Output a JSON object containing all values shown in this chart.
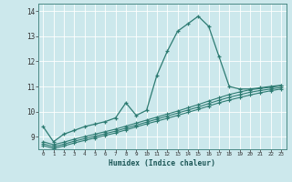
{
  "xlabel": "Humidex (Indice chaleur)",
  "background_color": "#cce8ec",
  "grid_color": "#b0d4d8",
  "line_color": "#2d7b72",
  "xlim": [
    -0.5,
    23.5
  ],
  "ylim": [
    8.5,
    14.3
  ],
  "xticks": [
    0,
    1,
    2,
    3,
    4,
    5,
    6,
    7,
    8,
    9,
    10,
    11,
    12,
    13,
    14,
    15,
    16,
    17,
    18,
    19,
    20,
    21,
    22,
    23
  ],
  "yticks": [
    9,
    10,
    11,
    12,
    13,
    14
  ],
  "curve1_x": [
    0,
    1,
    2,
    3,
    4,
    5,
    6,
    7,
    8,
    9,
    10,
    11,
    12,
    13,
    14,
    15,
    16,
    17,
    18,
    19,
    20,
    21,
    22,
    23
  ],
  "curve1_y": [
    9.4,
    8.8,
    9.1,
    9.25,
    9.4,
    9.5,
    9.6,
    9.75,
    10.35,
    9.85,
    10.05,
    11.45,
    12.4,
    13.2,
    13.5,
    13.8,
    13.4,
    12.2,
    11.0,
    10.9,
    10.9,
    10.95,
    11.0,
    11.05
  ],
  "curve2_x": [
    0,
    1,
    2,
    3,
    4,
    5,
    6,
    7,
    8,
    9,
    10,
    11,
    12,
    13,
    14,
    15,
    16,
    17,
    18,
    19,
    20,
    21,
    22,
    23
  ],
  "curve2_y": [
    8.8,
    8.68,
    8.78,
    8.9,
    9.0,
    9.1,
    9.2,
    9.3,
    9.42,
    9.54,
    9.66,
    9.78,
    9.9,
    10.02,
    10.15,
    10.28,
    10.42,
    10.55,
    10.68,
    10.78,
    10.87,
    10.92,
    10.97,
    11.02
  ],
  "curve3_x": [
    0,
    1,
    2,
    3,
    4,
    5,
    6,
    7,
    8,
    9,
    10,
    11,
    12,
    13,
    14,
    15,
    16,
    17,
    18,
    19,
    20,
    21,
    22,
    23
  ],
  "curve3_y": [
    8.72,
    8.6,
    8.7,
    8.82,
    8.92,
    9.02,
    9.12,
    9.22,
    9.34,
    9.46,
    9.58,
    9.7,
    9.82,
    9.94,
    10.06,
    10.18,
    10.32,
    10.45,
    10.57,
    10.67,
    10.77,
    10.84,
    10.9,
    10.96
  ],
  "curve4_x": [
    0,
    1,
    2,
    3,
    4,
    5,
    6,
    7,
    8,
    9,
    10,
    11,
    12,
    13,
    14,
    15,
    16,
    17,
    18,
    19,
    20,
    21,
    22,
    23
  ],
  "curve4_y": [
    8.65,
    8.53,
    8.63,
    8.75,
    8.85,
    8.95,
    9.05,
    9.15,
    9.27,
    9.39,
    9.51,
    9.62,
    9.73,
    9.85,
    9.97,
    10.09,
    10.22,
    10.35,
    10.46,
    10.56,
    10.66,
    10.75,
    10.83,
    10.9
  ]
}
